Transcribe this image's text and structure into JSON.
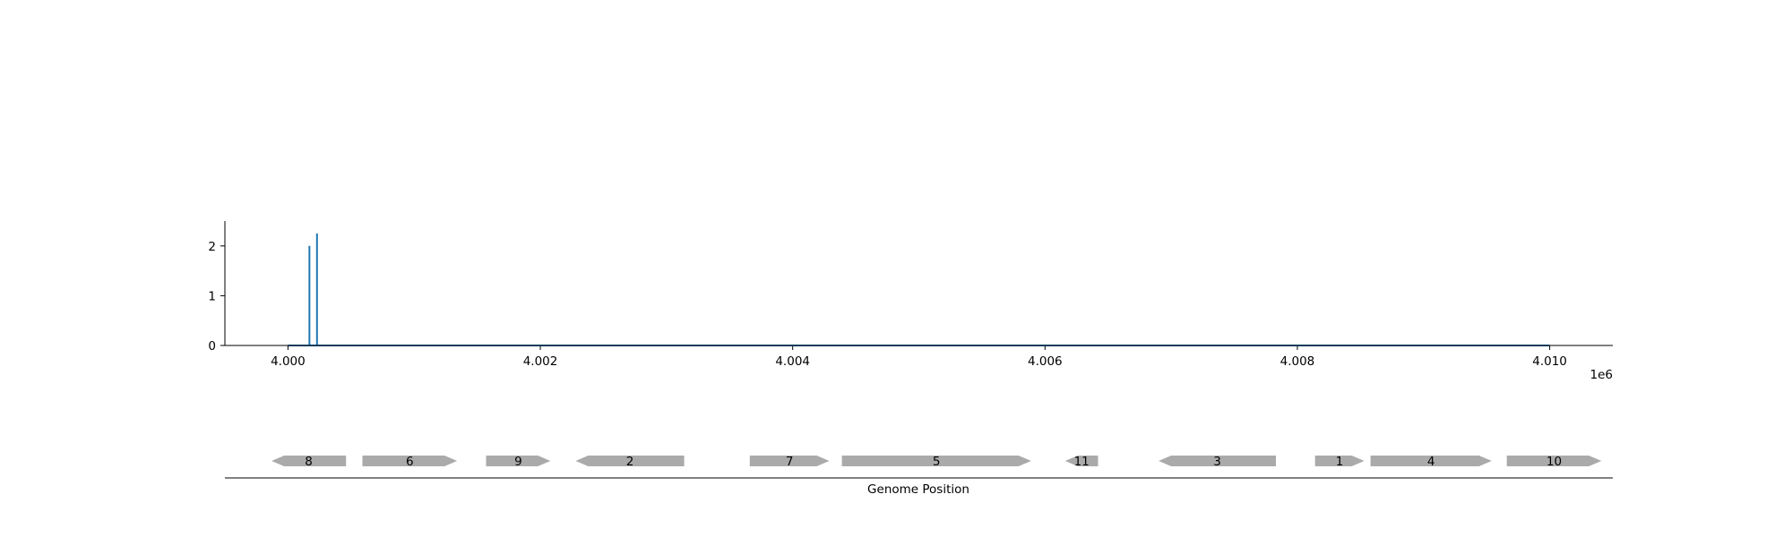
{
  "chart_data": [
    {
      "type": "line",
      "title": "",
      "xlabel": "",
      "ylabel": "",
      "xlim": [
        3999500,
        4010500
      ],
      "ylim": [
        0,
        2.5
      ],
      "x_offset_label": "1e6",
      "x_ticks": [
        4000000,
        4002000,
        4004000,
        4006000,
        4008000,
        4010000
      ],
      "x_tick_labels": [
        "4.000",
        "4.002",
        "4.004",
        "4.006",
        "4.008",
        "4.010"
      ],
      "y_ticks": [
        0,
        1,
        2
      ],
      "y_tick_labels": [
        "0",
        "1",
        "2"
      ],
      "grid": false,
      "series": [
        {
          "color": "#1f77b4",
          "x": [
            4000000,
            4000170,
            4000170,
            4000170,
            4000230,
            4000230,
            4000230,
            4010000
          ],
          "y": [
            0,
            0,
            2.0,
            0,
            0,
            2.25,
            0,
            0
          ]
        }
      ]
    },
    {
      "type": "gene-map",
      "xlabel": "Genome Position",
      "xlim": [
        3999500,
        4010500
      ],
      "gene_color": "#aaaaaa",
      "genes": [
        {
          "label": "8",
          "start": 3999870,
          "end": 4000460,
          "strand": "-"
        },
        {
          "label": "6",
          "start": 4000590,
          "end": 4001340,
          "strand": "+"
        },
        {
          "label": "9",
          "start": 4001570,
          "end": 4002080,
          "strand": "+"
        },
        {
          "label": "2",
          "start": 4002280,
          "end": 4003140,
          "strand": "-"
        },
        {
          "label": "7",
          "start": 4003660,
          "end": 4004290,
          "strand": "+"
        },
        {
          "label": "5",
          "start": 4004390,
          "end": 4005890,
          "strand": "+"
        },
        {
          "label": "11",
          "start": 4006160,
          "end": 4006420,
          "strand": "-"
        },
        {
          "label": "3",
          "start": 4006900,
          "end": 4007830,
          "strand": "-"
        },
        {
          "label": "1",
          "start": 4008140,
          "end": 4008530,
          "strand": "+"
        },
        {
          "label": "4",
          "start": 4008580,
          "end": 4009540,
          "strand": "+"
        },
        {
          "label": "10",
          "start": 4009660,
          "end": 4010410,
          "strand": "+"
        }
      ]
    }
  ]
}
